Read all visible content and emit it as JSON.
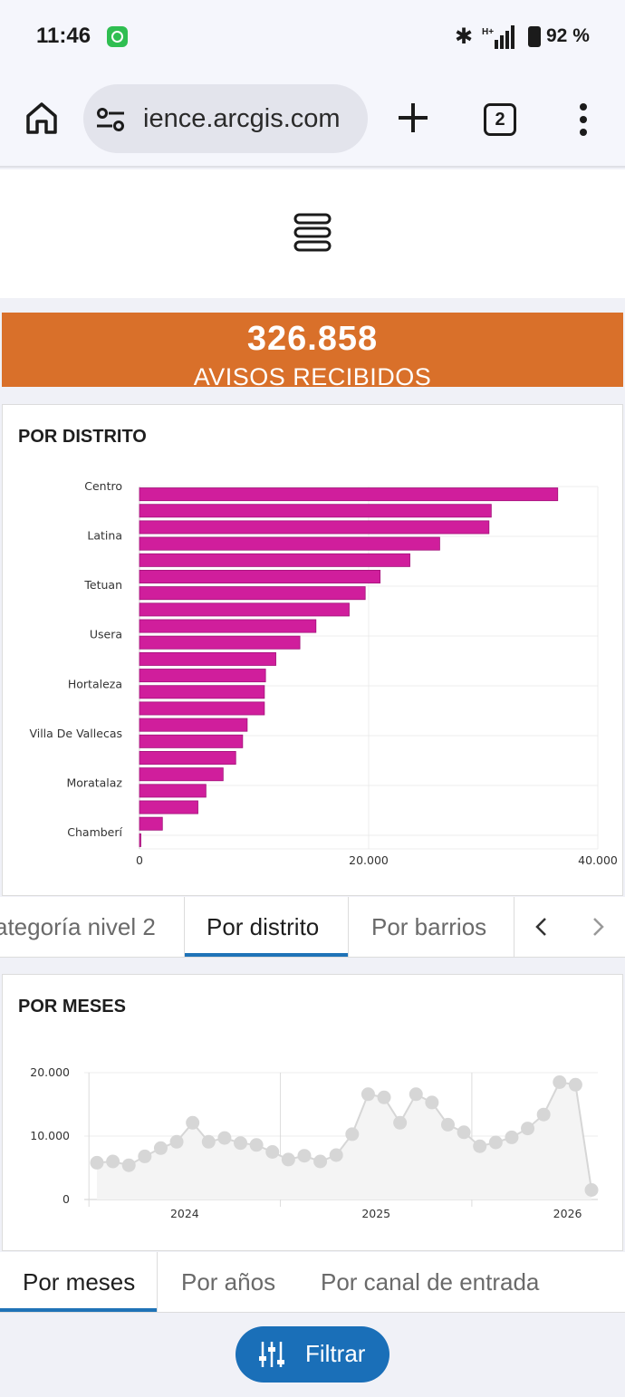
{
  "status_bar": {
    "time": "11:46",
    "battery": "92 %"
  },
  "browser": {
    "url": "ience.arcgis.com",
    "tab_count": "2"
  },
  "kpi": {
    "value": "326.858",
    "label": "AVISOS RECIBIDOS",
    "color": "#d9702a"
  },
  "district_card": {
    "title": "POR DISTRITO"
  },
  "tabs1": {
    "items": [
      "ategoría nivel 2",
      "Por distrito",
      "Por barrios"
    ],
    "active": "Por distrito"
  },
  "month_card": {
    "title": "POR MESES"
  },
  "tabs2": {
    "items": [
      "Por meses",
      "Por años",
      "Por canal de entrada"
    ],
    "active": "Por meses"
  },
  "filter": {
    "label": "Filtrar"
  },
  "colors": {
    "bar": "#d01e9c",
    "accent": "#1a6fb8",
    "point": "#d6d6d6"
  },
  "chart_data": [
    {
      "type": "bar",
      "orientation": "horizontal",
      "category_labels_shown": [
        "Centro",
        "Latina",
        "Tetuan",
        "Usera",
        "Hortaleza",
        "Villa De Vallecas",
        "Moratalaz",
        "Chamberí"
      ],
      "label_every": 3,
      "values": [
        36500,
        30700,
        30500,
        26200,
        23600,
        21000,
        19700,
        18300,
        15400,
        14000,
        11900,
        11000,
        10900,
        10900,
        9400,
        9000,
        8400,
        7300,
        5800,
        5100,
        2000,
        100
      ],
      "xlim": [
        0,
        40000
      ],
      "x_ticks": [
        "0",
        "20.000",
        "40.000"
      ],
      "x_tick_values": [
        0,
        20000,
        40000
      ],
      "grid": true
    },
    {
      "type": "line",
      "values": [
        5800,
        6000,
        5400,
        6800,
        8100,
        9100,
        12100,
        9100,
        9700,
        8900,
        8600,
        7500,
        6300,
        6900,
        6000,
        7000,
        10300,
        16600,
        16100,
        12100,
        16600,
        15300,
        11800,
        10600,
        8400,
        9000,
        9800,
        11200,
        13400,
        18500,
        18100,
        1500
      ],
      "x_ticks": [
        "2024",
        "2025",
        "2026"
      ],
      "y_ticks": [
        "0",
        "10.000",
        "20.000"
      ],
      "y_tick_values": [
        0,
        10000,
        20000
      ],
      "ylim": [
        0,
        20000
      ],
      "grid": true
    }
  ]
}
